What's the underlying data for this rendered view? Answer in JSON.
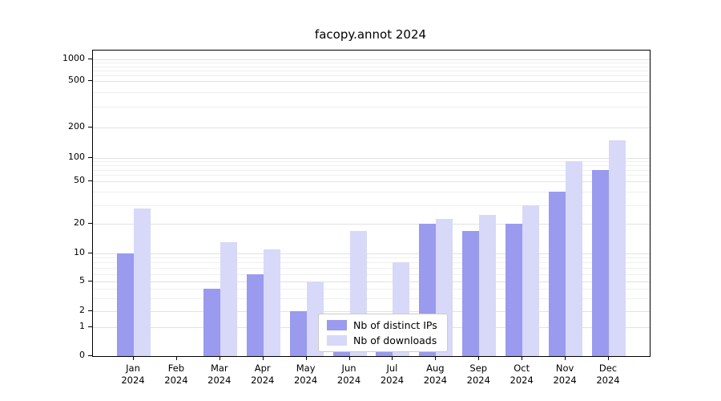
{
  "title": "facopy.annot 2024",
  "colors": {
    "ips_bar": "#9a9aee",
    "downloads_bar": "#d8d8f8",
    "grid_major": "#e2e2e2",
    "grid_minor": "#efefef",
    "axis": "#000000"
  },
  "chart_data": {
    "type": "bar",
    "title": "facopy.annot 2024",
    "yscale": "symlog",
    "grid": true,
    "legend_position": "lower center",
    "categories": [
      "Jan 2024",
      "Feb 2024",
      "Mar 2024",
      "Apr 2024",
      "May 2024",
      "Jun 2024",
      "Jul 2024",
      "Aug 2024",
      "Sep 2024",
      "Oct 2024",
      "Nov 2024",
      "Dec 2024"
    ],
    "series": [
      {
        "name": "Nb of distinct IPs",
        "color": "#9a9aee",
        "values": [
          10,
          0,
          4,
          6,
          2,
          1,
          1,
          20,
          17,
          20,
          40,
          70
        ]
      },
      {
        "name": "Nb of downloads",
        "color": "#d8d8f8",
        "values": [
          28,
          0,
          13,
          11,
          5,
          17,
          8,
          22,
          24,
          30,
          90,
          150
        ]
      }
    ],
    "y_ticks": [
      0,
      1,
      2,
      5,
      10,
      20,
      50,
      100,
      200,
      500,
      1000
    ],
    "y_minor_ticks": [
      3,
      4,
      6,
      7,
      8,
      9,
      30,
      40,
      60,
      70,
      80,
      90,
      300,
      400,
      600,
      700,
      800,
      900
    ],
    "ylim": [
      0,
      1500
    ]
  }
}
